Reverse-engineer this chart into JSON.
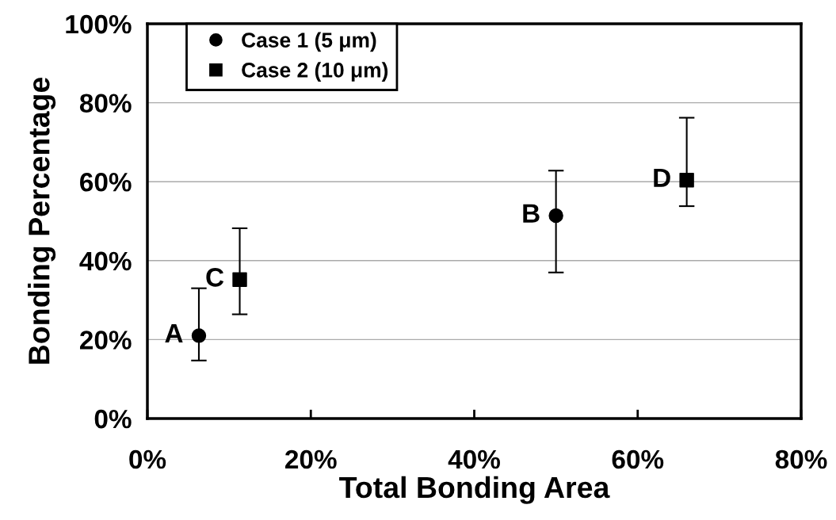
{
  "chart_data": {
    "type": "scatter",
    "xlabel": "Total Bonding Area",
    "ylabel": "Bonding Percentage",
    "xlim": [
      0,
      80
    ],
    "ylim": [
      0,
      100
    ],
    "xticks": [
      {
        "value": 0,
        "label": "0%"
      },
      {
        "value": 20,
        "label": "20%"
      },
      {
        "value": 40,
        "label": "40%"
      },
      {
        "value": 60,
        "label": "60%"
      },
      {
        "value": 80,
        "label": "80%"
      }
    ],
    "yticks": [
      {
        "value": 0,
        "label": "0%"
      },
      {
        "value": 20,
        "label": "20%"
      },
      {
        "value": 40,
        "label": "40%"
      },
      {
        "value": 60,
        "label": "60%"
      },
      {
        "value": 80,
        "label": "80%"
      },
      {
        "value": 100,
        "label": "100%"
      }
    ],
    "grid": "y",
    "legend": "top left",
    "series": [
      {
        "name": "Case 1 (5 μm)",
        "color": "#000000",
        "marker": "circle",
        "x": [
          6.3,
          50
        ],
        "values": [
          21,
          51.4
        ],
        "errors": [
          [
            14.7,
            33
          ],
          [
            37,
            62.8
          ]
        ]
      },
      {
        "name": "Case 2 (10 μm)",
        "color": "#000000",
        "marker": "square",
        "x": [
          11.3,
          66
        ],
        "values": [
          35.2,
          60.4
        ],
        "errors": [
          [
            26.4,
            48.2
          ],
          [
            53.8,
            76.2
          ]
        ]
      }
    ],
    "annotations": [
      {
        "text": "A",
        "x": 6.3,
        "y": 21
      },
      {
        "text": "B",
        "x": 50,
        "y": 51.4
      },
      {
        "text": "C",
        "x": 11.3,
        "y": 35.2
      },
      {
        "text": "D",
        "x": 66,
        "y": 60.4
      }
    ]
  }
}
